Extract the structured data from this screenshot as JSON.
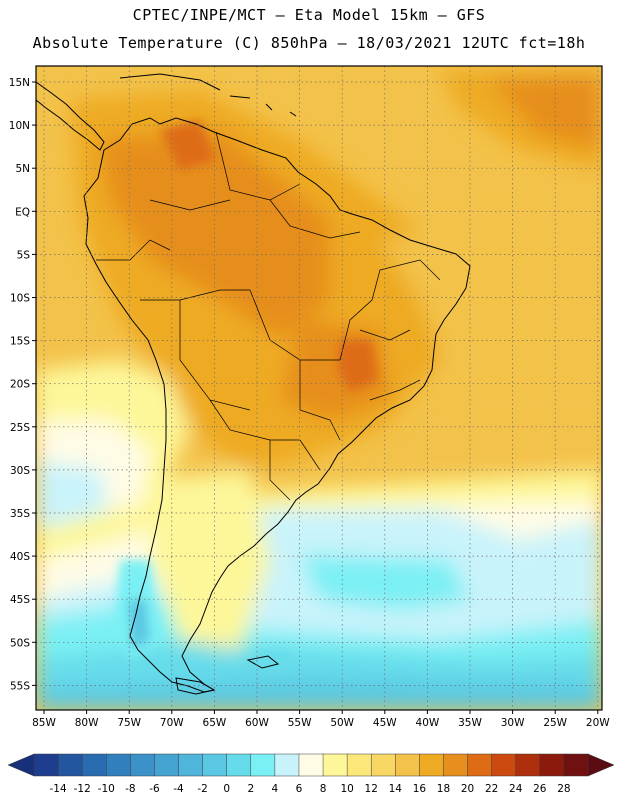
{
  "title_line1": "CPTEC/INPE/MCT –  Eta Model 15km – GFS",
  "title_line2": "Absolute Temperature (C) 850hPa – 18/03/2021 12UTC fct=18h",
  "lat_labels": [
    "15N",
    "10N",
    "5N",
    "EQ",
    "5S",
    "10S",
    "15S",
    "20S",
    "25S",
    "30S",
    "35S",
    "40S",
    "45S",
    "50S",
    "55S"
  ],
  "lon_labels": [
    "85W",
    "80W",
    "75W",
    "70W",
    "65W",
    "60W",
    "55W",
    "50W",
    "45W",
    "40W",
    "35W",
    "30W",
    "25W",
    "20W"
  ],
  "colorbar": {
    "ticks": [
      "-14",
      "-12",
      "-10",
      "-8",
      "-6",
      "-4",
      "-2",
      "0",
      "2",
      "4",
      "6",
      "8",
      "10",
      "12",
      "14",
      "16",
      "18",
      "20",
      "22",
      "24",
      "26",
      "28"
    ],
    "colors": [
      "#1f3d8f",
      "#24559f",
      "#2a6cb1",
      "#317fbd",
      "#3b91c8",
      "#45a3d1",
      "#4fb5da",
      "#5ac8e2",
      "#66dcea",
      "#7af0f4",
      "#c9f3fb",
      "#fffce6",
      "#fdf79a",
      "#fbe77a",
      "#f8d765",
      "#f3c24a",
      "#eeaa22",
      "#e68e1e",
      "#de6c16",
      "#cc4a10",
      "#ad2f0e",
      "#8c1a0c",
      "#701010"
    ]
  }
}
